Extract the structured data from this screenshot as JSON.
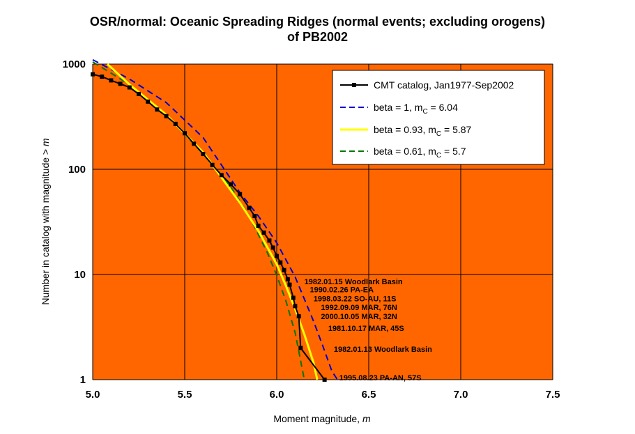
{
  "chart_data": {
    "type": "line",
    "title_line1": "OSR/normal: Oceanic Spreading Ridges (normal events; excluding orogens)",
    "title_line2": "of PB2002",
    "xlabel_text": "Moment magnitude, ",
    "xlabel_var": "m",
    "ylabel_text": "Number in catalog with magnitude > ",
    "ylabel_var": "m",
    "xlim": [
      5.0,
      7.5
    ],
    "ylim": [
      1,
      1000
    ],
    "yscale": "log",
    "grid": true,
    "plot_background": "#FF6600",
    "x_ticks": [
      "5.0",
      "5.5",
      "6.0",
      "6.5",
      "7.0",
      "7.5"
    ],
    "y_ticks": [
      "1",
      "10",
      "100",
      "1000"
    ],
    "legend_position": "top-right",
    "series": [
      {
        "name": "CMT catalog, Jan1977-Sep2002",
        "color": "#000000",
        "style": "line-markers",
        "x": [
          5.0,
          5.05,
          5.1,
          5.15,
          5.2,
          5.25,
          5.3,
          5.35,
          5.4,
          5.45,
          5.5,
          5.55,
          5.6,
          5.65,
          5.7,
          5.75,
          5.8,
          5.85,
          5.88,
          5.9,
          5.93,
          5.96,
          5.98,
          6.0,
          6.02,
          6.04,
          6.06,
          6.07,
          6.09,
          6.1,
          6.12,
          6.13,
          6.26
        ],
        "y": [
          800,
          760,
          700,
          650,
          600,
          520,
          440,
          370,
          320,
          270,
          220,
          175,
          140,
          110,
          88,
          72,
          58,
          43,
          36,
          29,
          25,
          21,
          18,
          15,
          13,
          11,
          9,
          8,
          6,
          5,
          4,
          2,
          1
        ]
      },
      {
        "name_text": "beta = 1, m",
        "name_sub": "C",
        "name_value": " = 6.04",
        "color": "#0000CC",
        "style": "dashed",
        "x": [
          5.0,
          5.2,
          5.4,
          5.6,
          5.8,
          5.9,
          6.0,
          6.1,
          6.2,
          6.25,
          6.3,
          6.33
        ],
        "y": [
          1100,
          720,
          430,
          200,
          60,
          36,
          20,
          9.5,
          3.6,
          2.1,
          1.2,
          1.0
        ]
      },
      {
        "name_text": "beta = 0.93, m",
        "name_sub": "C",
        "name_value": " = 5.87",
        "color": "#FFFF00",
        "style": "solid",
        "x": [
          5.08,
          5.2,
          5.4,
          5.6,
          5.8,
          5.9,
          6.0,
          6.05,
          6.1,
          6.15,
          6.2,
          6.22
        ],
        "y": [
          1000,
          640,
          330,
          145,
          48,
          26,
          12.5,
          7.8,
          4.7,
          2.7,
          1.45,
          1.0
        ]
      },
      {
        "name_text": "beta = 0.61, m",
        "name_sub": "C",
        "name_value": " = 5.7",
        "color": "#007700",
        "style": "dashed",
        "x": [
          5.0,
          5.2,
          5.4,
          5.6,
          5.75,
          5.85,
          5.95,
          6.0,
          6.05,
          6.1,
          6.15
        ],
        "y": [
          1050,
          640,
          330,
          140,
          68,
          36,
          16,
          9.8,
          5.6,
          2.8,
          1.0
        ]
      }
    ],
    "annotations": [
      {
        "text": "1982.01.15 Woodlark Basin",
        "x": 6.15,
        "y": 8.6
      },
      {
        "text": "1990.02.26 PA-EA",
        "x": 6.18,
        "y": 7.2
      },
      {
        "text": "1998.03.22 SO-AU, 11S",
        "x": 6.2,
        "y": 5.9
      },
      {
        "text": "1992.09.09 MAR, 76N",
        "x": 6.24,
        "y": 4.9
      },
      {
        "text": "2000.10.05 MAR, 32N",
        "x": 6.24,
        "y": 4.0
      },
      {
        "text": "1981.10.17 MAR, 45S",
        "x": 6.28,
        "y": 3.1
      },
      {
        "text": "1982.01.13 Woodlark Basin",
        "x": 6.31,
        "y": 1.95
      },
      {
        "text": "1995.08.23 PA-AN, 57S",
        "x": 6.34,
        "y": 1.05
      }
    ]
  }
}
